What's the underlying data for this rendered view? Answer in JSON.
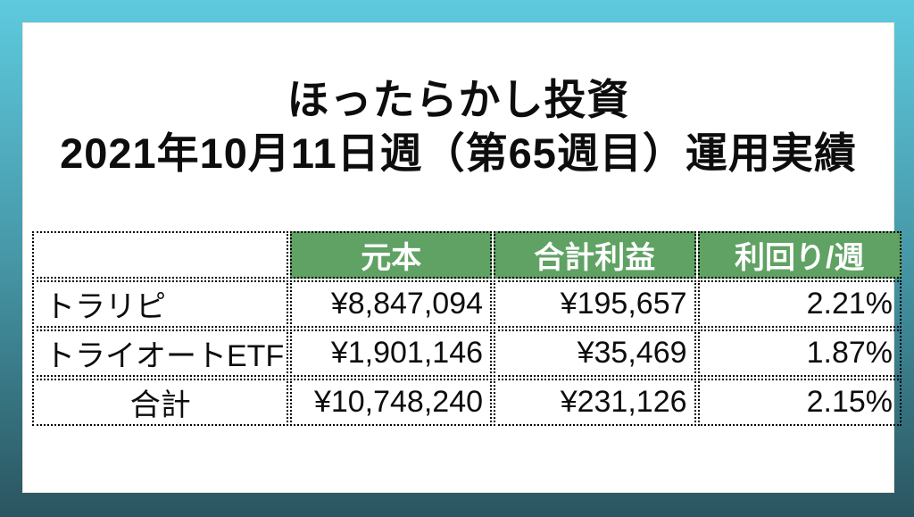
{
  "title": {
    "line1": "ほったらかし投資",
    "line2": "2021年10月11日週（第65週目）運用実績"
  },
  "table": {
    "headers": [
      "",
      "元本",
      "合計利益",
      "利回り/週"
    ],
    "rows": [
      {
        "label": "トラリピ",
        "principal": "¥8,847,094",
        "profit": "¥195,657",
        "yield": "2.21%"
      },
      {
        "label": "トライオートETF",
        "principal": "¥1,901,146",
        "profit": "¥35,469",
        "yield": "1.87%"
      },
      {
        "label": "合計",
        "principal": "¥10,748,240",
        "profit": "¥231,126",
        "yield": "2.15%"
      }
    ]
  },
  "chart_data": {
    "type": "table",
    "title": "ほったらかし投資 2021年10月11日週（第65週目）運用実績",
    "columns": [
      "",
      "元本",
      "合計利益",
      "利回り/週"
    ],
    "rows": [
      [
        "トラリピ",
        "¥8,847,094",
        "¥195,657",
        "2.21%"
      ],
      [
        "トライオートETF",
        "¥1,901,146",
        "¥35,469",
        "1.87%"
      ],
      [
        "合計",
        "¥10,748,240",
        "¥231,126",
        "2.15%"
      ]
    ],
    "numeric": {
      "principal_yen": [
        8847094,
        1901146,
        10748240
      ],
      "total_profit_yen": [
        195657,
        35469,
        231126
      ],
      "yield_per_week_pct": [
        2.21,
        1.87,
        2.15
      ]
    }
  },
  "colors": {
    "header_bg": "#5fa263",
    "header_text": "#ffffff",
    "card_bg": "#ffffff",
    "background_top": "#5ecade",
    "background_bottom": "#2a5560",
    "border": "#000000"
  }
}
